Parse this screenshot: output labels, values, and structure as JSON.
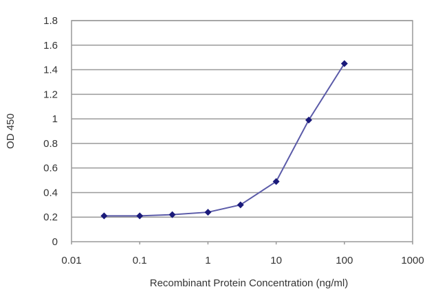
{
  "chart_data": {
    "type": "line",
    "title": "",
    "xlabel": "Recombinant Protein Concentration (ng/ml)",
    "ylabel": "OD 450",
    "x_scale": "log",
    "xlim": [
      0.01,
      1000
    ],
    "ylim": [
      0,
      1.8
    ],
    "x_ticks": [
      "0.01",
      "0.1",
      "1",
      "10",
      "100",
      "1000"
    ],
    "y_ticks": [
      "0",
      "0.2",
      "0.4",
      "0.6",
      "0.8",
      "1",
      "1.2",
      "1.4",
      "1.6",
      "1.8"
    ],
    "grid": "horizontal",
    "series": [
      {
        "x": [
          0.03,
          0.1,
          0.3,
          1,
          3,
          10,
          30,
          100
        ],
        "y": [
          0.21,
          0.21,
          0.22,
          0.24,
          0.3,
          0.49,
          0.99,
          1.45
        ],
        "color": "#1a1a7a",
        "line_color": "#5a5aa8",
        "marker": "diamond"
      }
    ]
  }
}
